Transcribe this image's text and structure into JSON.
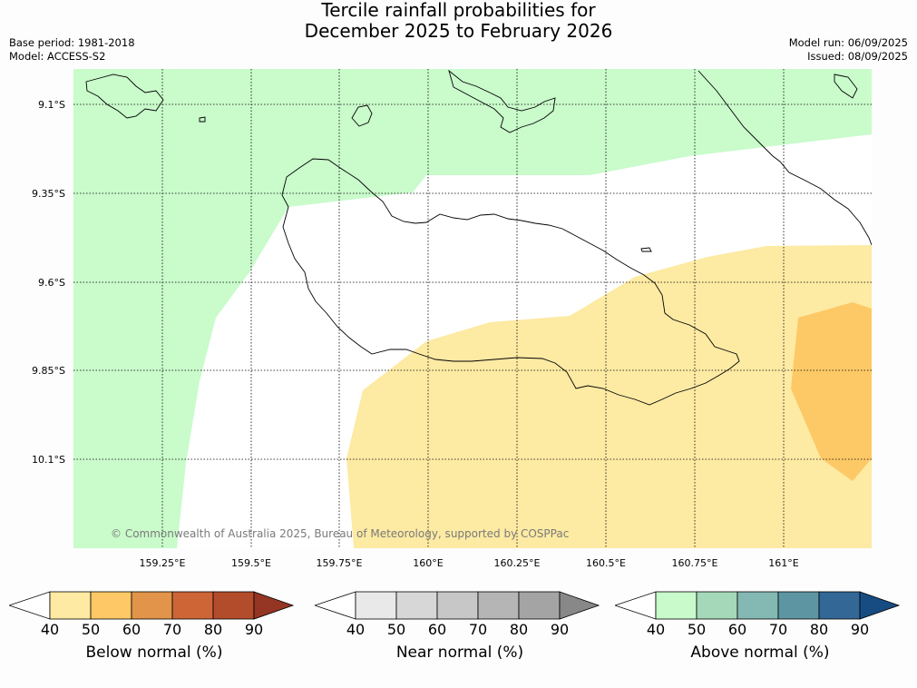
{
  "title": {
    "line1": "Tercile rainfall probabilities for",
    "line2": "December 2025 to February 2026"
  },
  "meta_left": {
    "base_period": "Base period: 1981-2018",
    "model": "Model: ACCESS-S2"
  },
  "meta_right": {
    "model_run": "Model run: 06/09/2025",
    "issued": "Issued: 08/09/2025"
  },
  "map": {
    "lat_labels": [
      "9.1°S",
      "9.35°S",
      "9.6°S",
      "9.85°S",
      "10.1°S"
    ],
    "lon_labels": [
      "159.25°E",
      "159.5°E",
      "159.75°E",
      "160°E",
      "160.25°E",
      "160.5°E",
      "160.75°E",
      "161°E"
    ],
    "copyright": "© Commonwealth of Australia 2025, Bureau of Meteorology, supported by COSPPac",
    "colors": {
      "ocean": "#ffffff",
      "above_40_50": "#c9fbcb",
      "below_40_50": "#fdeaa3",
      "below_50_60": "#fdc966",
      "coastline": "#000000"
    }
  },
  "colorbars": [
    {
      "title": "Below normal (%)",
      "ticks": [
        "40",
        "50",
        "60",
        "70",
        "80",
        "90"
      ],
      "colors": [
        "#ffffff",
        "#feeaa2",
        "#fdc865",
        "#e1944a",
        "#cd6537",
        "#b34c2b",
        "#953523"
      ]
    },
    {
      "title": "Near normal (%)",
      "ticks": [
        "40",
        "50",
        "60",
        "70",
        "80",
        "90"
      ],
      "colors": [
        "#ffffff",
        "#e9e9e9",
        "#d7d7d7",
        "#c7c7c7",
        "#b5b5b5",
        "#a4a4a4",
        "#888888"
      ]
    },
    {
      "title": "Above normal (%)",
      "ticks": [
        "40",
        "50",
        "60",
        "70",
        "80",
        "90"
      ],
      "colors": [
        "#ffffff",
        "#c9facb",
        "#a4d8b8",
        "#84b8b3",
        "#5d96a2",
        "#336796",
        "#174c82"
      ]
    }
  ]
}
